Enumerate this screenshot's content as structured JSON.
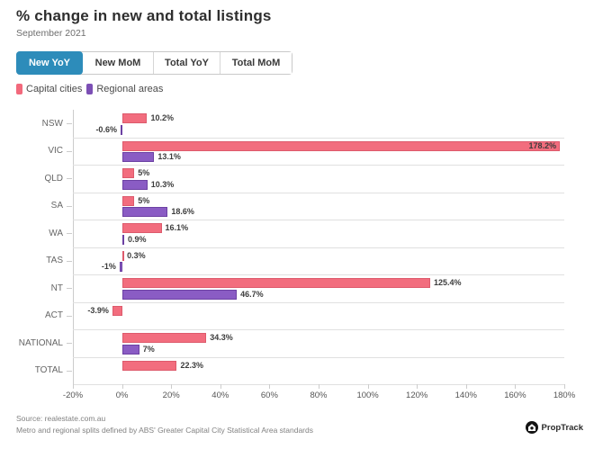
{
  "header": {
    "title": "% change in new and total listings",
    "subtitle": "September 2021"
  },
  "tabs": [
    {
      "label": "New YoY",
      "active": true
    },
    {
      "label": "New MoM",
      "active": false
    },
    {
      "label": "Total YoY",
      "active": false
    },
    {
      "label": "Total MoM",
      "active": false
    }
  ],
  "legend": [
    {
      "label": "Capital cities",
      "color": "#F2697C"
    },
    {
      "label": "Regional areas",
      "color": "#7C4FB5"
    }
  ],
  "colors": {
    "active_tab": "#2D8CBA",
    "capital_fill": "#F26D7E",
    "capital_border": "#DD5A6C",
    "regional_fill": "#8A5CC4",
    "regional_border": "#6C41A3"
  },
  "chart_data": {
    "type": "bar",
    "orientation": "horizontal",
    "title": "% change in new and total listings",
    "subtitle": "September 2021",
    "categories": [
      "NSW",
      "VIC",
      "QLD",
      "SA",
      "WA",
      "TAS",
      "NT",
      "ACT",
      "NATIONAL",
      "TOTAL"
    ],
    "series": [
      {
        "name": "Capital cities",
        "color": "#F26D7E",
        "values": [
          10.2,
          178.2,
          5,
          5,
          16.1,
          0.3,
          125.4,
          -3.9,
          34.3,
          22.3
        ],
        "labels": [
          "10.2%",
          "178.2%",
          "5%",
          "5%",
          "16.1%",
          "0.3%",
          "125.4%",
          "-3.9%",
          "34.3%",
          "22.3%"
        ]
      },
      {
        "name": "Regional areas",
        "color": "#8A5CC4",
        "values": [
          -0.6,
          13.1,
          10.3,
          18.6,
          0.9,
          -1,
          46.7,
          null,
          7,
          null
        ],
        "labels": [
          "-0.6%",
          "13.1%",
          "10.3%",
          "18.6%",
          "0.9%",
          "-1%",
          "46.7%",
          null,
          "7%",
          null
        ]
      }
    ],
    "xlim": [
      -20,
      180
    ],
    "xticks": [
      {
        "value": -20,
        "label": "-20%"
      },
      {
        "value": 0,
        "label": "0%"
      },
      {
        "value": 20,
        "label": "20%"
      },
      {
        "value": 40,
        "label": "40%"
      },
      {
        "value": 60,
        "label": "60%"
      },
      {
        "value": 80,
        "label": "80%"
      },
      {
        "value": 100,
        "label": "100%"
      },
      {
        "value": 120,
        "label": "120%"
      },
      {
        "value": 140,
        "label": "140%"
      },
      {
        "value": 160,
        "label": "160%"
      },
      {
        "value": 180,
        "label": "180%"
      }
    ],
    "grid": "horizontal-row-separators-only",
    "legend_position": "top-left"
  },
  "footer": {
    "source": "Source: realestate.com.au",
    "note": "Metro and regional splits defined by ABS' Greater Capital City Statistical Area standards"
  },
  "logo": {
    "text": "PropTrack"
  }
}
